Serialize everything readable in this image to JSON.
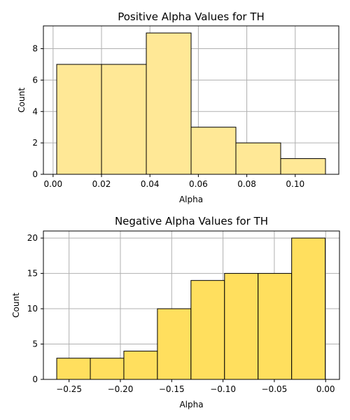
{
  "chart_data": [
    {
      "type": "histogram",
      "title": "Positive Alpha Values for TH",
      "xlabel": "Alpha",
      "ylabel": "Count",
      "xlim": [
        -0.004,
        0.118
      ],
      "ylim": [
        0,
        9.45
      ],
      "xticks": [
        0.0,
        0.02,
        0.04,
        0.06,
        0.08,
        0.1
      ],
      "xtick_labels": [
        "0.00",
        "0.02",
        "0.04",
        "0.06",
        "0.08",
        "0.10"
      ],
      "yticks": [
        0,
        2,
        4,
        6,
        8
      ],
      "ytick_labels": [
        "0",
        "2",
        "4",
        "6",
        "8"
      ],
      "bins": [
        {
          "x0": 0.0015,
          "x1": 0.02,
          "count": 7
        },
        {
          "x0": 0.02,
          "x1": 0.0385,
          "count": 7
        },
        {
          "x0": 0.0385,
          "x1": 0.057,
          "count": 9
        },
        {
          "x0": 0.057,
          "x1": 0.0755,
          "count": 3
        },
        {
          "x0": 0.0755,
          "x1": 0.094,
          "count": 2
        },
        {
          "x0": 0.094,
          "x1": 0.1125,
          "count": 1
        }
      ],
      "bar_color": "#ffe896",
      "edge_color": "#000000",
      "grid": true
    },
    {
      "type": "histogram",
      "title": "Negative Alpha Values for TH",
      "xlabel": "Alpha",
      "ylabel": "Count",
      "xlim": [
        -0.275,
        0.0135
      ],
      "ylim": [
        0,
        21
      ],
      "xticks": [
        -0.25,
        -0.2,
        -0.15,
        -0.1,
        -0.05,
        0.0
      ],
      "xtick_labels": [
        "−0.25",
        "−0.20",
        "−0.15",
        "−0.10",
        "−0.05",
        "0.00"
      ],
      "yticks": [
        0,
        5,
        10,
        15,
        20
      ],
      "ytick_labels": [
        "0",
        "5",
        "10",
        "15",
        "20"
      ],
      "bins": [
        {
          "x0": -0.262,
          "x1": -0.2293,
          "count": 3
        },
        {
          "x0": -0.2293,
          "x1": -0.1966,
          "count": 3
        },
        {
          "x0": -0.1966,
          "x1": -0.1639,
          "count": 4
        },
        {
          "x0": -0.1639,
          "x1": -0.1312,
          "count": 10
        },
        {
          "x0": -0.1312,
          "x1": -0.0985,
          "count": 14
        },
        {
          "x0": -0.0985,
          "x1": -0.0658,
          "count": 15
        },
        {
          "x0": -0.0658,
          "x1": -0.0331,
          "count": 15
        },
        {
          "x0": -0.0331,
          "x1": -0.0004,
          "count": 20
        }
      ],
      "bar_color": "#ffdf5e",
      "edge_color": "#000000",
      "grid": true
    }
  ]
}
